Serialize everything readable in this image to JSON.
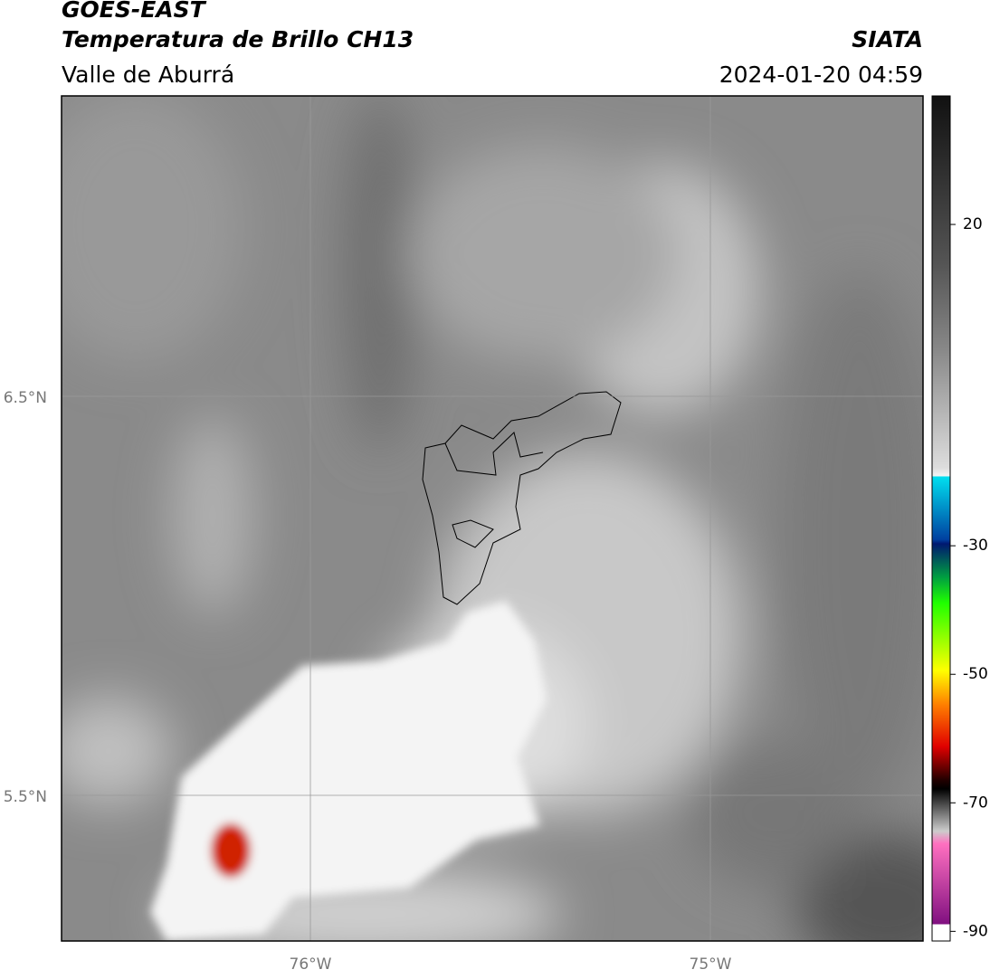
{
  "header": {
    "title": "GOES-EAST",
    "subtitle": "Temperatura de Brillo CH13",
    "region": "Valle de Aburrá",
    "agency": "SIATA",
    "datetime": "2024-01-20 04:59"
  },
  "map": {
    "lat_labels": [
      "6.5°N",
      "5.5°N"
    ],
    "lon_labels": [
      "76°W",
      "75°W"
    ]
  },
  "colorbar": {
    "range": [
      -91.5,
      40
    ],
    "ticks": [
      20,
      -30,
      -50,
      -70,
      -90
    ]
  }
}
